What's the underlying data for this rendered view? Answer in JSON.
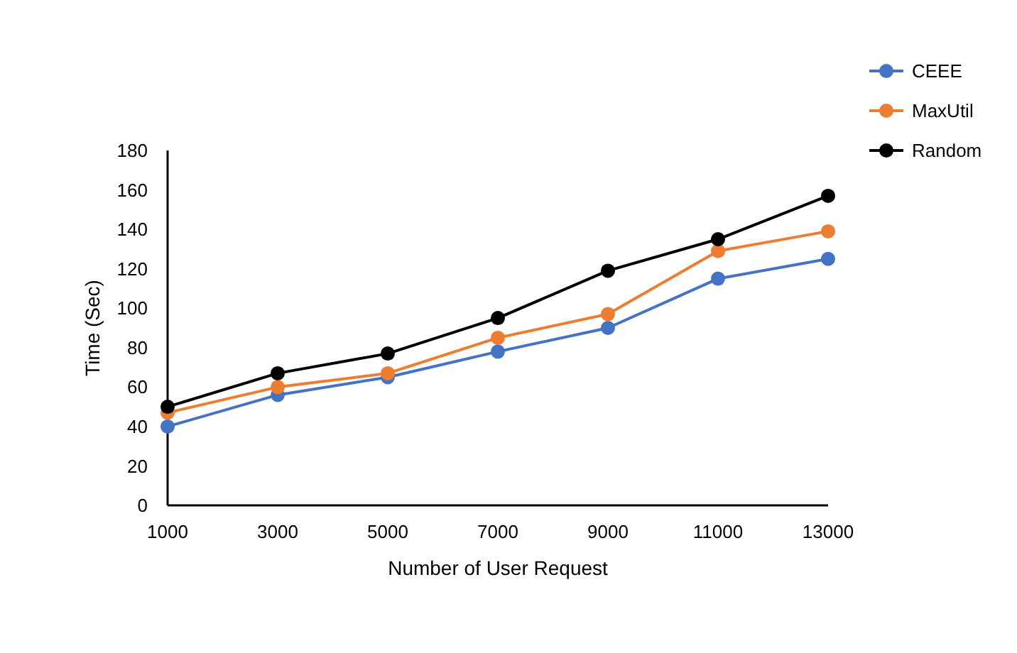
{
  "chart_data": {
    "type": "line",
    "xlabel": "Number of User Request",
    "ylabel": "Time (Sec)",
    "categories": [
      "1000",
      "3000",
      "5000",
      "7000",
      "9000",
      "11000",
      "13000"
    ],
    "series": [
      {
        "name": "CEEE",
        "color": "#4472c4",
        "values": [
          40,
          56,
          65,
          78,
          90,
          115,
          125
        ]
      },
      {
        "name": "MaxUtil",
        "color": "#ed7d31",
        "values": [
          47,
          60,
          67,
          85,
          97,
          129,
          139
        ]
      },
      {
        "name": "Random",
        "color": "#000000",
        "values": [
          50,
          67,
          77,
          95,
          119,
          135,
          157
        ]
      }
    ],
    "ylim": [
      0,
      180
    ],
    "yticks": [
      0,
      20,
      40,
      60,
      80,
      100,
      120,
      140,
      160,
      180
    ],
    "marker": "circle",
    "legend": "top right",
    "grid": false
  }
}
